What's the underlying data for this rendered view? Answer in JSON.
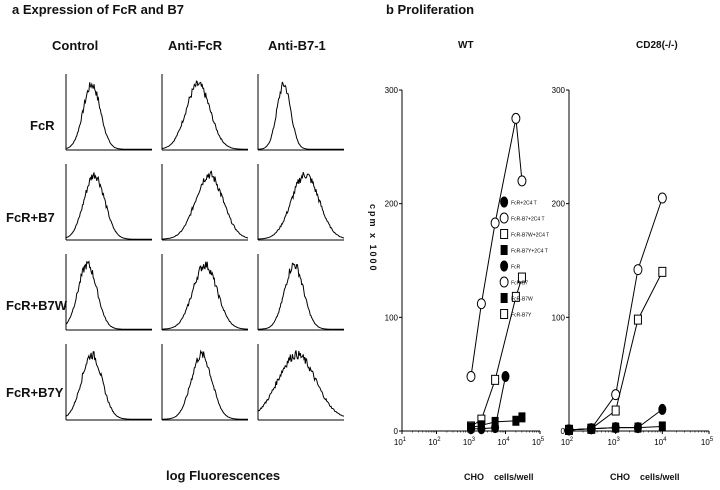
{
  "panel_a": {
    "title": "a  Expression of FcR and B7",
    "columns": [
      "Control",
      "Anti-FcR",
      "Anti-B7-1"
    ],
    "rows": [
      "FcR",
      "FcR+B7",
      "FcR+B7W",
      "FcR+B7Y"
    ],
    "xlabel": "log Fluorescences"
  },
  "panel_b": {
    "title": "b  Proliferation",
    "ylabel": "cpm x 1000",
    "xlabel_left": "CHO",
    "xlabel_right": "cells/well"
  },
  "chart_data": [
    {
      "type": "line",
      "title": "WT",
      "xscale": "log",
      "xlim": [
        10,
        100000
      ],
      "ylim": [
        0,
        300
      ],
      "yticks": [
        0,
        100,
        200,
        300
      ],
      "xticks": [
        "10^1",
        "10^2",
        "10^3",
        "10^4",
        "10^5"
      ],
      "legend_position": "right",
      "series": [
        {
          "name": "FcR+2C4 T",
          "marker": "filled-circle",
          "points": [
            [
              1000,
              2
            ],
            [
              2000,
              2
            ],
            [
              5000,
              3
            ],
            [
              10000,
              48
            ]
          ]
        },
        {
          "name": "FcR-B7+2C4 T",
          "marker": "open-circle",
          "points": [
            [
              1000,
              48
            ],
            [
              2000,
              112
            ],
            [
              5000,
              183
            ],
            [
              20000,
              275
            ],
            [
              30000,
              220
            ]
          ]
        },
        {
          "name": "FcR-B7W+2C4 T",
          "marker": "open-square",
          "points": [
            [
              1000,
              4
            ],
            [
              2000,
              10
            ],
            [
              5000,
              45
            ],
            [
              20000,
              118
            ],
            [
              30000,
              135
            ]
          ]
        },
        {
          "name": "FcR-B7Y+2C4 T",
          "marker": "filled-square",
          "points": [
            [
              1000,
              3
            ],
            [
              2000,
              5
            ],
            [
              5000,
              8
            ],
            [
              20000,
              9
            ],
            [
              30000,
              12
            ]
          ]
        }
      ],
      "legend": [
        "FcR+2C4 T",
        "FcR-B7+2C4 T",
        "FcR-B7W+2C4 T",
        "FcR-B7Y+2C4 T",
        "FcR",
        "FcR-B7",
        "FcR-B7W",
        "FcR-B7Y"
      ]
    },
    {
      "type": "line",
      "title": "CD28(-/-)",
      "xscale": "log",
      "xlim": [
        100,
        100000
      ],
      "ylim": [
        0,
        300
      ],
      "yticks": [
        0,
        100,
        200,
        300
      ],
      "xticks": [
        "10^2",
        "10^3",
        "10^4",
        "10^5"
      ],
      "series": [
        {
          "name": "FcR+2C4 T",
          "marker": "filled-circle",
          "points": [
            [
              100,
              1
            ],
            [
              300,
              2
            ],
            [
              1000,
              3
            ],
            [
              3000,
              3
            ],
            [
              10000,
              19
            ]
          ]
        },
        {
          "name": "FcR-B7+2C4 T",
          "marker": "open-circle",
          "points": [
            [
              100,
              1
            ],
            [
              300,
              2
            ],
            [
              1000,
              32
            ],
            [
              3000,
              142
            ],
            [
              10000,
              205
            ]
          ]
        },
        {
          "name": "FcR-B7W+2C4 T",
          "marker": "open-square",
          "points": [
            [
              100,
              1
            ],
            [
              300,
              2
            ],
            [
              1000,
              18
            ],
            [
              3000,
              98
            ],
            [
              10000,
              140
            ]
          ]
        },
        {
          "name": "FcR-B7Y+2C4 T",
          "marker": "filled-square",
          "points": [
            [
              100,
              1
            ],
            [
              300,
              2
            ],
            [
              1000,
              3
            ],
            [
              3000,
              3
            ],
            [
              10000,
              4
            ]
          ]
        }
      ]
    }
  ]
}
